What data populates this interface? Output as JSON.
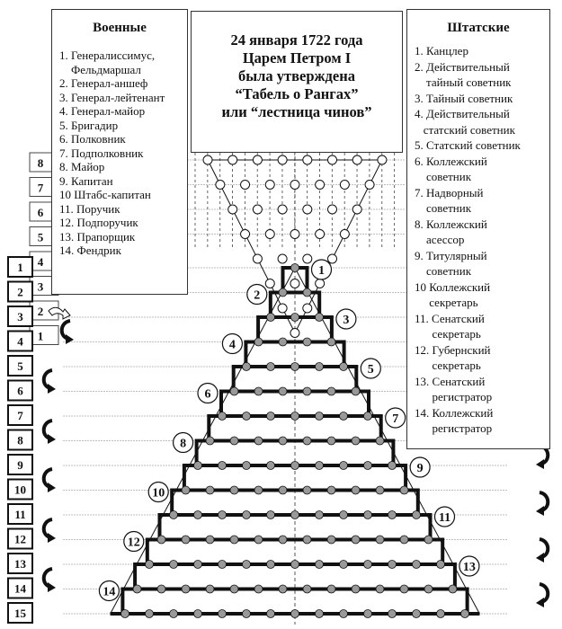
{
  "title_box": {
    "lines": [
      "24 января 1722 года",
      "Царем Петром I",
      "была утверждена",
      "“Табель о Рангах”",
      "или “лестница чинов”"
    ]
  },
  "military": {
    "heading": "Военные",
    "lines": [
      "1. Генералиссимус,",
      "    Фельдмаршал",
      "2. Генерал-аншеф",
      "3. Генерал-лейтенант",
      "4. Генерал-майор",
      "5. Бригадир",
      "6. Полковник",
      "7. Подполковник",
      "8. Майор",
      "9. Капитан",
      "10 Штабс-капитан",
      "11. Поручик",
      "12. Подпоручик",
      "13. Прапорщик",
      "14. Фендрик"
    ]
  },
  "civil": {
    "heading": "Штатские",
    "lines": [
      "1. Канцлер",
      "2. Действительный",
      "    тайный советник",
      "3. Тайный советник",
      "4. Действительный",
      "   статский советник",
      "5. Статский советник",
      "6. Коллежский",
      "    советник",
      "7. Надворный",
      "    советник",
      "8. Коллежский",
      "    асессор",
      "9. Титулярный",
      "    советник",
      "10 Коллежский",
      "     секретарь",
      "11. Сенатский",
      "      секретарь",
      "12. Губернский",
      "      секретарь",
      "13. Сенатский",
      "      регистратор",
      "14. Коллежский",
      "      регистратор"
    ]
  },
  "outer_column_numbers": [
    "1",
    "2",
    "3",
    "4",
    "5",
    "6",
    "7",
    "8",
    "9",
    "10",
    "11",
    "12",
    "13",
    "14",
    "15"
  ],
  "inner_column_numbers": [
    "8",
    "7",
    "6",
    "5",
    "4",
    "3",
    "2",
    "1"
  ],
  "step_rank_numbers": [
    "1",
    "2",
    "3",
    "4",
    "5",
    "6",
    "7",
    "8",
    "9",
    "10",
    "11",
    "12",
    "13",
    "14"
  ],
  "colors": {
    "ink": "#111111",
    "dot_fill": "#999999",
    "guide": "#aaaaaa"
  }
}
